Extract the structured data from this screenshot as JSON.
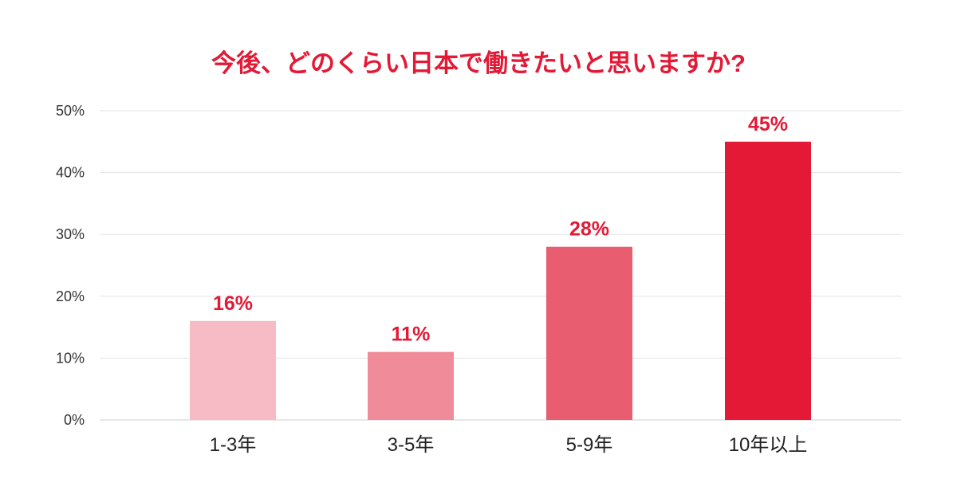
{
  "chart_data": {
    "type": "bar",
    "title": "今後、どのくらい日本で働きたいと思いますか?",
    "categories": [
      "1-3年",
      "3-5年",
      "5-9年",
      "10年以上"
    ],
    "values": [
      16,
      11,
      28,
      45
    ],
    "value_labels": [
      "16%",
      "11%",
      "28%",
      "45%"
    ],
    "bar_colors": [
      "#f6bbc4",
      "#f08c99",
      "#e85d70",
      "#e31936"
    ],
    "ylim": [
      0,
      50
    ],
    "yticks": [
      0,
      10,
      20,
      30,
      40,
      50
    ],
    "ytick_labels": [
      "0%",
      "10%",
      "20%",
      "30%",
      "40%",
      "50%"
    ],
    "grid": true,
    "xlabel": "",
    "ylabel": "",
    "accent_color": "#e31936"
  }
}
